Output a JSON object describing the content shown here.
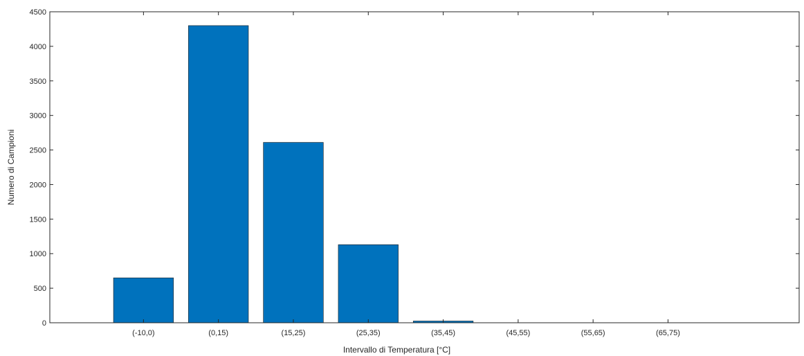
{
  "chart_data": {
    "type": "bar",
    "categories": [
      "(-10,0)",
      "(0,15)",
      "(15,25)",
      "(25,35)",
      "(35,45)",
      "(45,55)",
      "(55,65)",
      "(65,75)"
    ],
    "values": [
      650,
      4300,
      2610,
      1130,
      25,
      0,
      0,
      0
    ],
    "title": "",
    "xlabel": "Intervallo di Temperatura [°C]",
    "ylabel": "Numero di Campioni",
    "ylim": [
      0,
      4500
    ],
    "yticks": [
      "0",
      "500",
      "1000",
      "1500",
      "2000",
      "2500",
      "3000",
      "3500",
      "4000",
      "4500"
    ],
    "grid": false,
    "bar_color": "#0072BD",
    "axis_color": "#262626"
  }
}
